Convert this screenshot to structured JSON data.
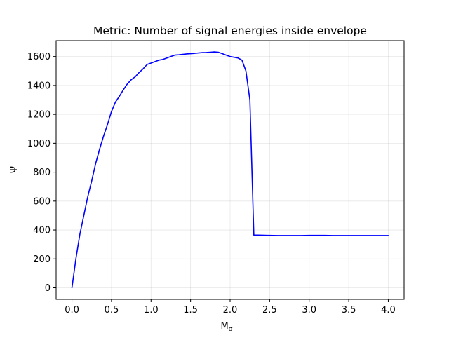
{
  "chart_data": {
    "type": "line",
    "title": "Metric: Number of signal energies inside envelope",
    "xlabel": "M_σ",
    "xlabel_main": "M",
    "xlabel_sub": "σ",
    "ylabel": "Ψ",
    "xlim": [
      -0.2,
      4.2
    ],
    "ylim": [
      -80,
      1710
    ],
    "xticks": [
      0.0,
      0.5,
      1.0,
      1.5,
      2.0,
      2.5,
      3.0,
      3.5,
      4.0
    ],
    "xtick_labels": [
      "0.0",
      "0.5",
      "1.0",
      "1.5",
      "2.0",
      "2.5",
      "3.0",
      "3.5",
      "4.0"
    ],
    "yticks": [
      0,
      200,
      400,
      600,
      800,
      1000,
      1200,
      1400,
      1600
    ],
    "ytick_labels": [
      "0",
      "200",
      "400",
      "600",
      "800",
      "1000",
      "1200",
      "1400",
      "1600"
    ],
    "grid": true,
    "series": [
      {
        "color": "#0000ff",
        "x": [
          0.0,
          0.05,
          0.1,
          0.15,
          0.2,
          0.25,
          0.3,
          0.35,
          0.4,
          0.45,
          0.5,
          0.55,
          0.6,
          0.65,
          0.7,
          0.75,
          0.8,
          0.85,
          0.9,
          0.95,
          1.0,
          1.05,
          1.1,
          1.15,
          1.2,
          1.25,
          1.3,
          1.35,
          1.4,
          1.45,
          1.5,
          1.55,
          1.6,
          1.65,
          1.7,
          1.75,
          1.8,
          1.85,
          1.9,
          1.95,
          2.0,
          2.05,
          2.1,
          2.15,
          2.2,
          2.25,
          2.3,
          2.35,
          2.4,
          2.5,
          2.6,
          2.7,
          2.8,
          2.9,
          3.0,
          3.1,
          3.2,
          3.3,
          3.4,
          3.5,
          3.6,
          3.7,
          3.8,
          3.9,
          4.0
        ],
        "y": [
          0,
          200,
          370,
          500,
          630,
          740,
          860,
          960,
          1050,
          1130,
          1220,
          1285,
          1325,
          1370,
          1410,
          1440,
          1460,
          1490,
          1515,
          1545,
          1555,
          1565,
          1575,
          1580,
          1590,
          1600,
          1610,
          1612,
          1615,
          1618,
          1620,
          1622,
          1625,
          1627,
          1628,
          1630,
          1632,
          1630,
          1620,
          1610,
          1600,
          1595,
          1590,
          1575,
          1500,
          1300,
          365,
          365,
          364,
          363,
          362,
          362,
          362,
          362,
          363,
          363,
          363,
          362,
          362,
          362,
          362,
          362,
          362,
          362,
          362
        ]
      }
    ]
  }
}
